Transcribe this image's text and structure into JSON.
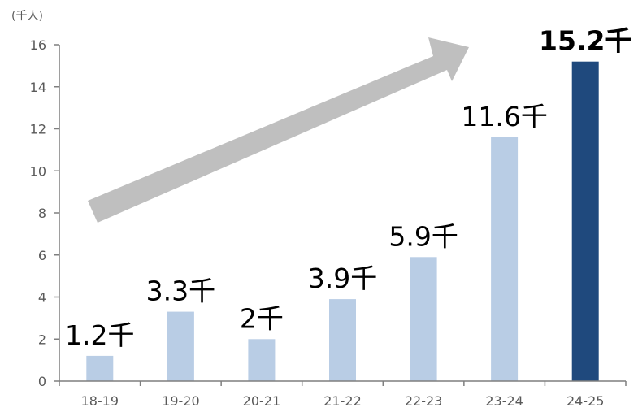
{
  "chart_data": {
    "type": "bar",
    "unit_label": "(千人)",
    "categories": [
      "18-19",
      "19-20",
      "20-21",
      "21-22",
      "22-23",
      "23-24",
      "24-25"
    ],
    "values": [
      1.2,
      3.3,
      2.0,
      3.9,
      5.9,
      11.6,
      15.2
    ],
    "data_labels": [
      "1.2千",
      "3.3千",
      "2千",
      "3.9千",
      "5.9千",
      "11.6千",
      "15.2千"
    ],
    "ylim": [
      0,
      16
    ],
    "yticks": [
      0,
      2,
      4,
      6,
      8,
      10,
      12,
      14,
      16
    ],
    "grid": false,
    "colors": {
      "bar": "#b9cde5",
      "highlight_bar": "#1f497d",
      "arrow": "#bfbfbf",
      "axis": "#7f7f7f"
    },
    "highlight_index": 6,
    "annotation": "upward-trend-arrow"
  }
}
